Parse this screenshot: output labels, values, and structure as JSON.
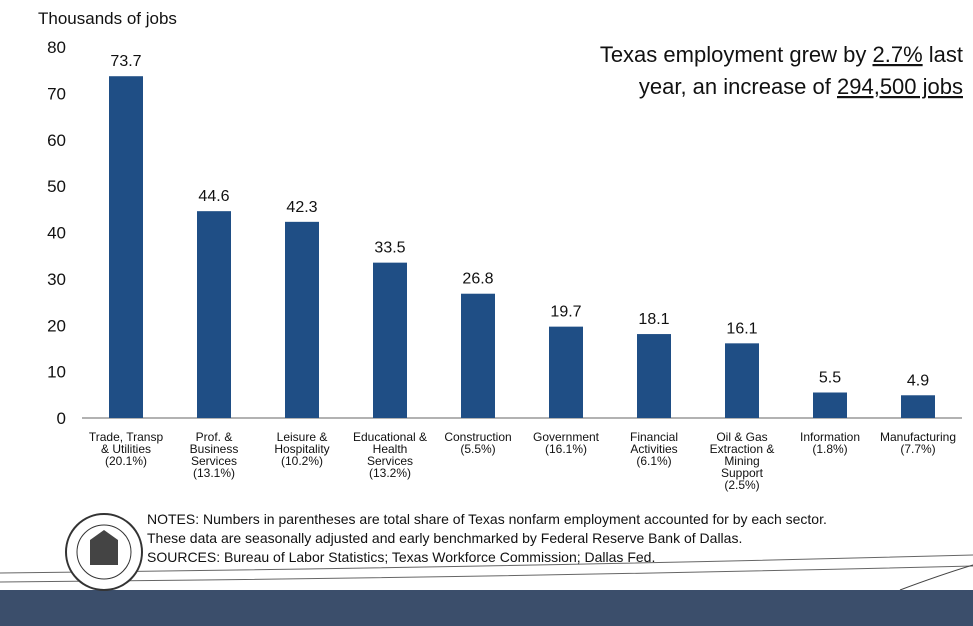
{
  "chart_data": {
    "type": "bar",
    "y_axis_title": "Thousands of jobs",
    "categories": [
      [
        "Trade, Transp",
        "& Utilities",
        "(20.1%)"
      ],
      [
        "Prof. &",
        "Business",
        "Services",
        "(13.1%)"
      ],
      [
        "Leisure &",
        "Hospitality",
        "(10.2%)"
      ],
      [
        "Educational &",
        "Health",
        "Services",
        "(13.2%)"
      ],
      [
        "Construction",
        "(5.5%)"
      ],
      [
        "Government",
        "(16.1%)"
      ],
      [
        "Financial",
        "Activities",
        "(6.1%)"
      ],
      [
        "Oil & Gas",
        "Extraction &",
        "Mining",
        "Support",
        "(2.5%)"
      ],
      [
        "Information",
        "(1.8%)"
      ],
      [
        "Manufacturing",
        "(7.7%)"
      ]
    ],
    "values": [
      73.7,
      44.6,
      42.3,
      33.5,
      26.8,
      19.7,
      18.1,
      16.1,
      5.5,
      4.9
    ],
    "color": "#1f4e85",
    "ylim": [
      0,
      80
    ],
    "yticks": [
      0,
      10,
      20,
      30,
      40,
      50,
      60,
      70,
      80
    ],
    "grid": false,
    "annotation": [
      [
        "Texas employment grew by ",
        "2.7%",
        " last"
      ],
      [
        "year, an increase of ",
        "294,500 jobs"
      ]
    ],
    "notes": [
      "NOTES: Numbers in parentheses are total share of Texas nonfarm employment accounted for by each sector.",
      "These data are seasonally adjusted and early benchmarked by Federal Reserve Bank of Dallas.",
      "SOURCES: Bureau of Labor Statistics; Texas Workforce Commission; Dallas Fed."
    ]
  }
}
